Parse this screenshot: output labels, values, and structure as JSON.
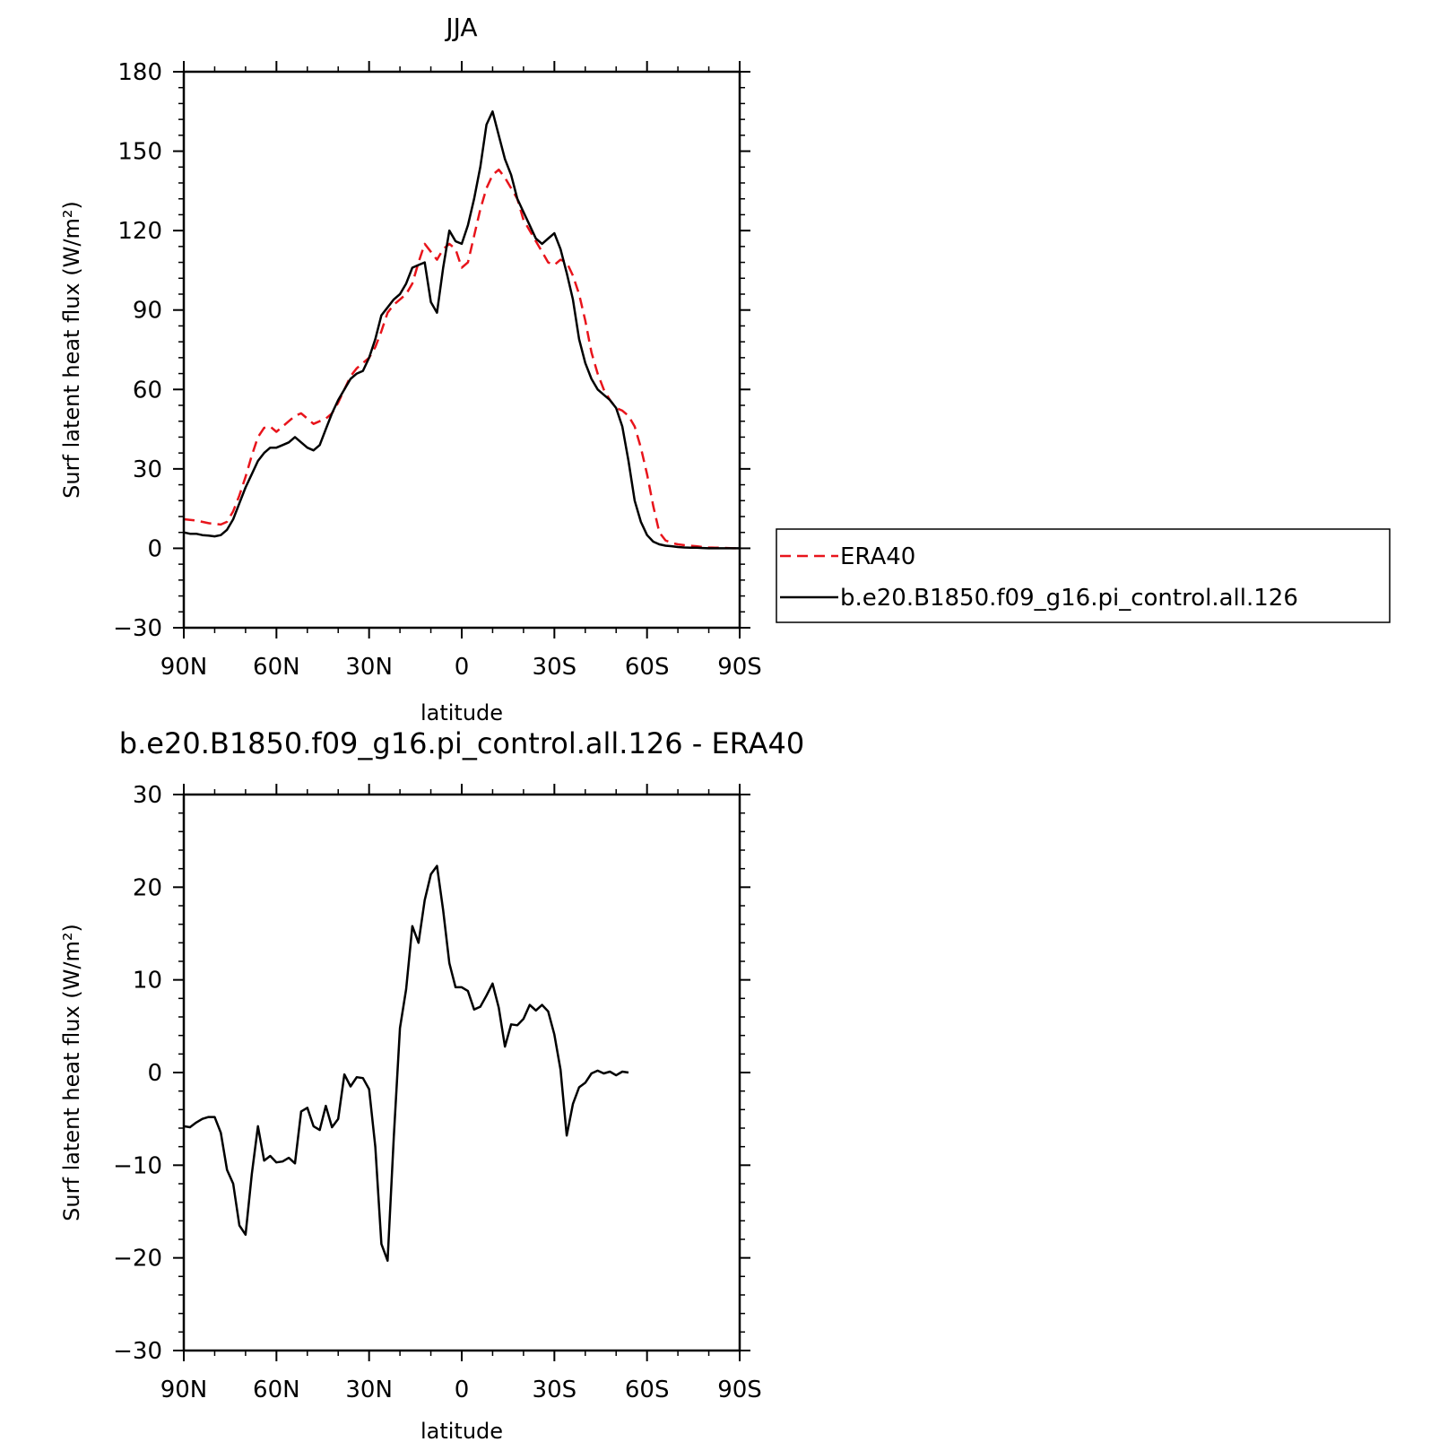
{
  "chart_data": [
    {
      "type": "line",
      "title": "JJA",
      "xlabel": "latitude",
      "ylabel": "Surf latent heat flux (W/m²)",
      "xlim": [
        90,
        -90
      ],
      "ylim": [
        -30,
        180
      ],
      "xticks": [
        {
          "value": 90,
          "label": "90N"
        },
        {
          "value": 60,
          "label": "60N"
        },
        {
          "value": 30,
          "label": "30N"
        },
        {
          "value": 0,
          "label": "0"
        },
        {
          "value": -30,
          "label": "30S"
        },
        {
          "value": -60,
          "label": "60S"
        },
        {
          "value": -90,
          "label": "90S"
        }
      ],
      "yticks": [
        -30,
        0,
        30,
        60,
        90,
        120,
        150,
        180
      ],
      "legend_position": "right",
      "series": [
        {
          "name": "ERA40",
          "color": "#e8141b",
          "dash": "dashed",
          "points": [
            [
              90,
              11
            ],
            [
              86,
              10.5
            ],
            [
              82,
              9.5
            ],
            [
              78,
              9
            ],
            [
              76,
              10
            ],
            [
              74,
              14
            ],
            [
              72,
              20
            ],
            [
              70,
              27
            ],
            [
              68,
              35
            ],
            [
              66,
              42
            ],
            [
              64,
              45.5
            ],
            [
              62,
              46
            ],
            [
              60,
              44
            ],
            [
              58,
              46
            ],
            [
              56,
              48
            ],
            [
              54,
              50
            ],
            [
              52,
              51
            ],
            [
              50,
              49
            ],
            [
              48,
              47
            ],
            [
              46,
              48
            ],
            [
              44,
              49
            ],
            [
              42,
              51
            ],
            [
              40,
              55
            ],
            [
              38,
              60
            ],
            [
              36,
              65
            ],
            [
              34,
              68
            ],
            [
              32,
              70
            ],
            [
              30,
              72
            ],
            [
              28,
              76
            ],
            [
              26,
              82
            ],
            [
              24,
              89
            ],
            [
              22,
              92
            ],
            [
              20,
              94
            ],
            [
              18,
              96
            ],
            [
              16,
              100
            ],
            [
              14,
              108
            ],
            [
              12,
              115
            ],
            [
              10,
              112
            ],
            [
              8,
              109
            ],
            [
              6,
              113
            ],
            [
              4,
              115
            ],
            [
              2,
              113
            ],
            [
              0,
              106
            ],
            [
              -2,
              108
            ],
            [
              -4,
              118
            ],
            [
              -6,
              128
            ],
            [
              -8,
              136
            ],
            [
              -10,
              141
            ],
            [
              -12,
              143
            ],
            [
              -14,
              140
            ],
            [
              -16,
              136
            ],
            [
              -18,
              132
            ],
            [
              -20,
              124
            ],
            [
              -22,
              120
            ],
            [
              -24,
              116
            ],
            [
              -26,
              112
            ],
            [
              -28,
              108
            ],
            [
              -30,
              107
            ],
            [
              -32,
              109
            ],
            [
              -34,
              108
            ],
            [
              -36,
              103
            ],
            [
              -38,
              96
            ],
            [
              -40,
              86
            ],
            [
              -42,
              74
            ],
            [
              -44,
              66
            ],
            [
              -46,
              60
            ],
            [
              -48,
              56
            ],
            [
              -50,
              53
            ],
            [
              -52,
              52
            ],
            [
              -54,
              50
            ],
            [
              -56,
              46
            ],
            [
              -58,
              38
            ],
            [
              -60,
              28
            ],
            [
              -62,
              16
            ],
            [
              -64,
              6
            ],
            [
              -66,
              3
            ],
            [
              -68,
              2
            ],
            [
              -70,
              1.5
            ],
            [
              -72,
              1.2
            ],
            [
              -74,
              1
            ],
            [
              -76,
              0.8
            ],
            [
              -78,
              0.5
            ],
            [
              -80,
              0.3
            ],
            [
              -82,
              0.2
            ],
            [
              -84,
              0.2
            ],
            [
              -86,
              0.1
            ],
            [
              -88,
              0
            ],
            [
              -90,
              0
            ]
          ]
        },
        {
          "name": "b.e20.B1850.f09_g16.pi_control.all.126",
          "color": "#000000",
          "dash": "solid",
          "points": [
            [
              90,
              6
            ],
            [
              88,
              5.5
            ],
            [
              86,
              5.5
            ],
            [
              84,
              5
            ],
            [
              82,
              4.8
            ],
            [
              80,
              4.5
            ],
            [
              78,
              5
            ],
            [
              76,
              7
            ],
            [
              74,
              11
            ],
            [
              72,
              17
            ],
            [
              70,
              23
            ],
            [
              68,
              28
            ],
            [
              66,
              33
            ],
            [
              64,
              36
            ],
            [
              62,
              38
            ],
            [
              60,
              38
            ],
            [
              58,
              39
            ],
            [
              56,
              40
            ],
            [
              54,
              42
            ],
            [
              52,
              40
            ],
            [
              50,
              38
            ],
            [
              48,
              37
            ],
            [
              46,
              39
            ],
            [
              44,
              45
            ],
            [
              42,
              51
            ],
            [
              40,
              56
            ],
            [
              38,
              60
            ],
            [
              36,
              64
            ],
            [
              34,
              66
            ],
            [
              32,
              67
            ],
            [
              30,
              72
            ],
            [
              28,
              79
            ],
            [
              26,
              88
            ],
            [
              24,
              91
            ],
            [
              22,
              94
            ],
            [
              20,
              96
            ],
            [
              18,
              100
            ],
            [
              16,
              106
            ],
            [
              14,
              107
            ],
            [
              12,
              108
            ],
            [
              10,
              93
            ],
            [
              8,
              89
            ],
            [
              6,
              106
            ],
            [
              4,
              120
            ],
            [
              2,
              116
            ],
            [
              0,
              115
            ],
            [
              -2,
              122
            ],
            [
              -4,
              132
            ],
            [
              -6,
              144
            ],
            [
              -8,
              160
            ],
            [
              -10,
              165
            ],
            [
              -12,
              156
            ],
            [
              -14,
              147
            ],
            [
              -16,
              141
            ],
            [
              -18,
              132
            ],
            [
              -20,
              127
            ],
            [
              -22,
              122
            ],
            [
              -24,
              117
            ],
            [
              -26,
              115
            ],
            [
              -28,
              117
            ],
            [
              -30,
              119
            ],
            [
              -32,
              113
            ],
            [
              -34,
              104
            ],
            [
              -36,
              94
            ],
            [
              -38,
              79
            ],
            [
              -40,
              70
            ],
            [
              -42,
              64
            ],
            [
              -44,
              60
            ],
            [
              -46,
              58
            ],
            [
              -48,
              56
            ],
            [
              -50,
              53
            ],
            [
              -52,
              46
            ],
            [
              -54,
              33
            ],
            [
              -56,
              18
            ],
            [
              -58,
              10
            ],
            [
              -60,
              5
            ],
            [
              -62,
              2.5
            ],
            [
              -64,
              1.5
            ],
            [
              -66,
              1
            ],
            [
              -68,
              0.8
            ],
            [
              -70,
              0.5
            ],
            [
              -72,
              0.3
            ],
            [
              -74,
              0.2
            ],
            [
              -76,
              0.2
            ],
            [
              -78,
              0.1
            ],
            [
              -80,
              0
            ],
            [
              -84,
              0
            ],
            [
              -90,
              0
            ]
          ]
        }
      ]
    },
    {
      "type": "line",
      "title": "b.e20.B1850.f09_g16.pi_control.all.126 - ERA40",
      "xlabel": "latitude",
      "ylabel": "Surf latent heat flux (W/m²)",
      "xlim": [
        90,
        -90
      ],
      "ylim": [
        -30,
        30
      ],
      "xticks": [
        {
          "value": 90,
          "label": "90N"
        },
        {
          "value": 60,
          "label": "60N"
        },
        {
          "value": 30,
          "label": "30N"
        },
        {
          "value": 0,
          "label": "0"
        },
        {
          "value": -30,
          "label": "30S"
        },
        {
          "value": -60,
          "label": "60S"
        },
        {
          "value": -90,
          "label": "90S"
        }
      ],
      "yticks": [
        -30,
        -20,
        -10,
        0,
        10,
        20,
        30
      ],
      "series": [
        {
          "color": "#000000",
          "dash": "solid",
          "points": [
            [
              90,
              -5.8
            ],
            [
              88,
              -5.9
            ],
            [
              86,
              -5.4
            ],
            [
              84,
              -5
            ],
            [
              82,
              -4.8
            ],
            [
              80,
              -4.8
            ],
            [
              78,
              -6.5
            ],
            [
              76,
              -10.5
            ],
            [
              74,
              -12
            ],
            [
              72,
              -16.5
            ],
            [
              70,
              -17.5
            ],
            [
              68,
              -11
            ],
            [
              66,
              -5.8
            ],
            [
              64,
              -9.5
            ],
            [
              62,
              -9
            ],
            [
              60,
              -9.7
            ],
            [
              58,
              -9.6
            ],
            [
              56,
              -9.2
            ],
            [
              54,
              -9.8
            ],
            [
              52,
              -4.2
            ],
            [
              50,
              -3.8
            ],
            [
              48,
              -5.8
            ],
            [
              46,
              -6.2
            ],
            [
              44,
              -3.6
            ],
            [
              42,
              -5.9
            ],
            [
              40,
              -5
            ],
            [
              38,
              -0.2
            ],
            [
              36,
              -1.5
            ],
            [
              34,
              -0.5
            ],
            [
              32,
              -0.6
            ],
            [
              30,
              -1.8
            ],
            [
              28,
              -8
            ],
            [
              26,
              -18.5
            ],
            [
              24,
              -20.3
            ],
            [
              22,
              -7
            ],
            [
              20,
              4.8
            ],
            [
              18,
              9
            ],
            [
              16,
              15.8
            ],
            [
              14,
              14
            ],
            [
              12,
              18.6
            ],
            [
              10,
              21.4
            ],
            [
              8,
              22.3
            ],
            [
              6,
              17.5
            ],
            [
              4,
              11.8
            ],
            [
              2,
              9.2
            ],
            [
              0,
              9.2
            ],
            [
              -2,
              8.8
            ],
            [
              -4,
              6.8
            ],
            [
              -6,
              7.1
            ],
            [
              -8,
              8.3
            ],
            [
              -10,
              9.6
            ],
            [
              -12,
              7
            ],
            [
              -14,
              2.8
            ],
            [
              -16,
              5.2
            ],
            [
              -18,
              5.1
            ],
            [
              -20,
              5.8
            ],
            [
              -22,
              7.3
            ],
            [
              -24,
              6.7
            ],
            [
              -26,
              7.3
            ],
            [
              -28,
              6.6
            ],
            [
              -30,
              4.1
            ],
            [
              -32,
              0.3
            ],
            [
              -34,
              -6.8
            ],
            [
              -36,
              -3.4
            ],
            [
              -38,
              -1.6
            ],
            [
              -40,
              -1.1
            ],
            [
              -42,
              -0.1
            ],
            [
              -44,
              0.2
            ],
            [
              -46,
              -0.1
            ],
            [
              -48,
              0.1
            ],
            [
              -50,
              -0.3
            ],
            [
              -52,
              0.1
            ],
            [
              -54,
              0
            ]
          ]
        }
      ]
    }
  ]
}
